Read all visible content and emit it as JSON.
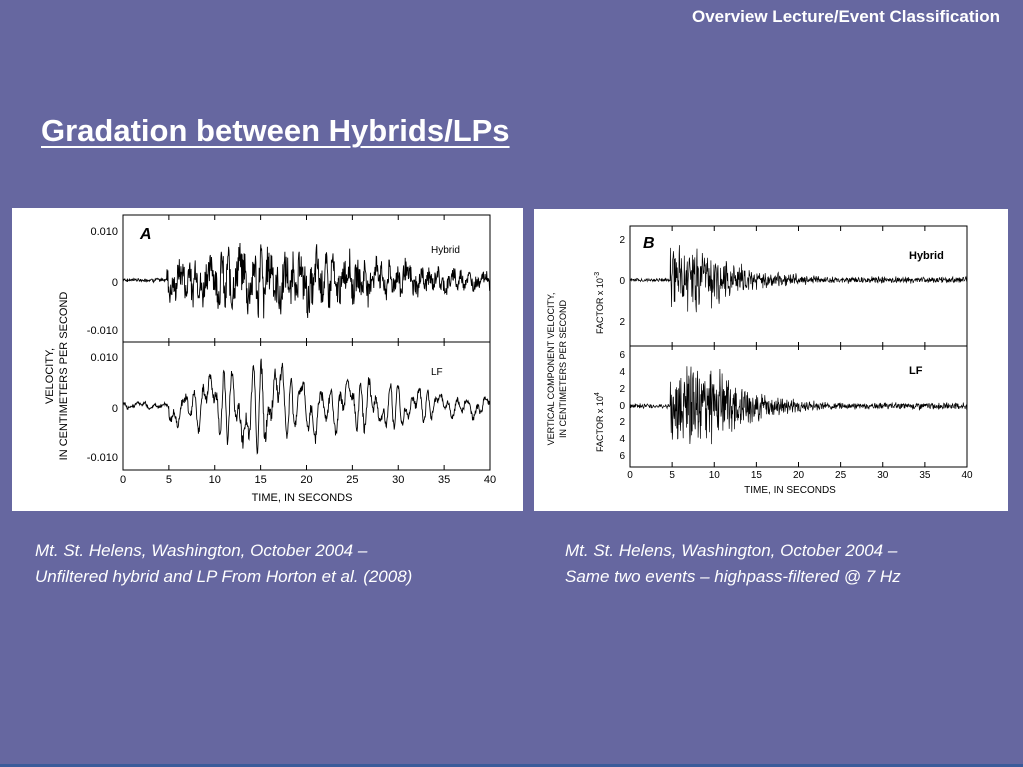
{
  "header": {
    "title": "Overview Lecture/Event Classification"
  },
  "slide": {
    "title": "Gradation between Hybrids/LPs"
  },
  "figures": [
    {
      "panel_letter": "A",
      "ylabel_line1": "VELOCITY,",
      "ylabel_line2": "IN CENTIMETERS PER SECOND",
      "xlabel": "TIME, IN SECONDS",
      "xticks": [
        "0",
        "5",
        "10",
        "15",
        "20",
        "25",
        "30",
        "35",
        "40"
      ],
      "top": {
        "label": "Hybrid",
        "yticks": [
          "0.010",
          "0",
          "-0.010"
        ]
      },
      "bottom": {
        "label": "LF",
        "yticks": [
          "0.010",
          "0",
          "-0.010"
        ]
      }
    },
    {
      "panel_letter": "B",
      "ylabel_line1": "VERTICAL COMPONENT VELOCITY,",
      "ylabel_line2": "IN CENTIMETERS PER SECOND",
      "xlabel": "TIME, IN SECONDS",
      "xticks": [
        "0",
        "5",
        "10",
        "15",
        "20",
        "25",
        "30",
        "35",
        "40"
      ],
      "top": {
        "label": "Hybrid",
        "factor": "FACTOR x 10",
        "exponent": "-3",
        "yticks": [
          "2",
          "0",
          "2"
        ]
      },
      "bottom": {
        "label": "LF",
        "factor": "FACTOR x 10",
        "exponent": "4",
        "yticks": [
          "6",
          "4",
          "2",
          "0",
          "2",
          "4",
          "6"
        ]
      }
    }
  ],
  "captions": {
    "a_line1": "Mt. St. Helens, Washington, October 2004 –",
    "a_line2": "Unfiltered hybrid and LP From Horton et al. (2008)",
    "b_line1": "Mt. St. Helens, Washington, October 2004 –",
    "b_line2": "Same two events – highpass-filtered @ 7 Hz"
  }
}
